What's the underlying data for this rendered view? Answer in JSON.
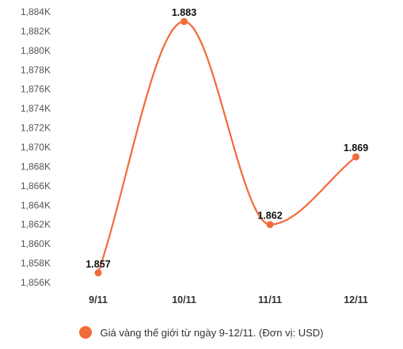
{
  "chart_data": {
    "type": "line",
    "categories": [
      "9/11",
      "10/11",
      "11/11",
      "12/11"
    ],
    "series": [
      {
        "name": "Giá vàng thế giới từ ngày 9-12/11. (Đơn vị: USD)",
        "values": [
          1857,
          1883,
          1862,
          1869
        ],
        "data_labels": [
          "1.857",
          "1.883",
          "1.862",
          "1.869"
        ],
        "color": "#f26b3a"
      }
    ],
    "yticks": [
      1856,
      1858,
      1860,
      1862,
      1864,
      1866,
      1868,
      1870,
      1872,
      1874,
      1876,
      1878,
      1880,
      1882,
      1884
    ],
    "ytick_labels": [
      "1,856K",
      "1,858K",
      "1,860K",
      "1,862K",
      "1,864K",
      "1,866K",
      "1,868K",
      "1,870K",
      "1,872K",
      "1,874K",
      "1,876K",
      "1,878K",
      "1,880K",
      "1,882K",
      "1,884K"
    ],
    "ylim": [
      1856,
      1884
    ],
    "grid": false,
    "legend_position": "bottom",
    "line_style": "smooth"
  }
}
